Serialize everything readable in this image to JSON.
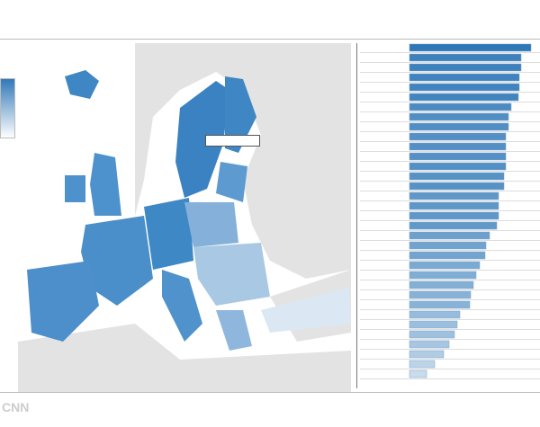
{
  "chart_data": {
    "type": "bar",
    "logo": "CNN",
    "values": [
      135,
      124,
      124,
      122,
      122,
      121,
      113,
      110,
      110,
      107,
      107,
      107,
      107,
      105,
      105,
      99,
      99,
      99,
      97,
      89,
      85,
      84,
      78,
      74,
      71,
      68,
      67,
      56,
      53,
      50,
      44,
      38,
      28,
      19
    ]
  }
}
